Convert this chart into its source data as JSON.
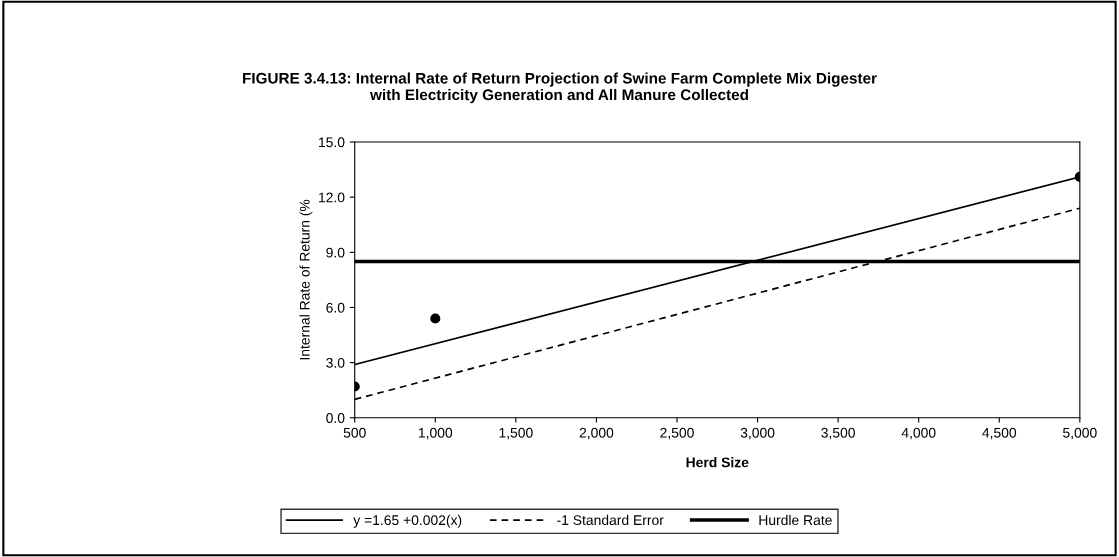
{
  "chart_data": {
    "type": "line",
    "title": "FIGURE 3.4.13: Internal Rate of Return Projection of Swine Farm Complete Mix Digester\nwith Electricity Generation and All Manure Collected",
    "xlabel": "Herd Size",
    "ylabel": "Internal Rate of Return (%",
    "xlim": [
      500,
      5000
    ],
    "xticks": [
      {
        "value": 500,
        "label": "500"
      },
      {
        "value": 1000,
        "label": "1,000"
      },
      {
        "value": 1500,
        "label": "1,500"
      },
      {
        "value": 2000,
        "label": "2,000"
      },
      {
        "value": 2500,
        "label": "2,500"
      },
      {
        "value": 3000,
        "label": "3,000"
      },
      {
        "value": 3500,
        "label": "3,500"
      },
      {
        "value": 4000,
        "label": "4,000"
      },
      {
        "value": 4500,
        "label": "4,500"
      },
      {
        "value": 5000,
        "label": "5,000"
      }
    ],
    "ylim": [
      0,
      15
    ],
    "yticks": [
      {
        "value": 0,
        "label": "0.0"
      },
      {
        "value": 3,
        "label": "3.0"
      },
      {
        "value": 6,
        "label": "6.0"
      },
      {
        "value": 9,
        "label": "9.0"
      },
      {
        "value": 12,
        "label": "12.0"
      },
      {
        "value": 15,
        "label": "15.0"
      }
    ],
    "grid": false,
    "legend": "bottom",
    "series": [
      {
        "type": "scatter",
        "color": "#000000",
        "x": [
          500,
          1000,
          5000
        ],
        "values": [
          1.7,
          5.4,
          13.1
        ],
        "marker": "circle"
      },
      {
        "name": "y =1.65 +0.002(x)",
        "color": "#000000",
        "x": [
          500,
          5000
        ],
        "values": [
          2.9,
          13.1
        ],
        "line_style": "solid"
      },
      {
        "name": "-1 Standard Error",
        "color": "#000000",
        "x": [
          500,
          5000
        ],
        "values": [
          1.0,
          11.4
        ],
        "line_style": "dashed"
      },
      {
        "name": "Hurdle Rate",
        "color": "#000000",
        "x": [
          500,
          5000
        ],
        "values": [
          8.5,
          8.5
        ],
        "line_style": "solid"
      }
    ]
  }
}
